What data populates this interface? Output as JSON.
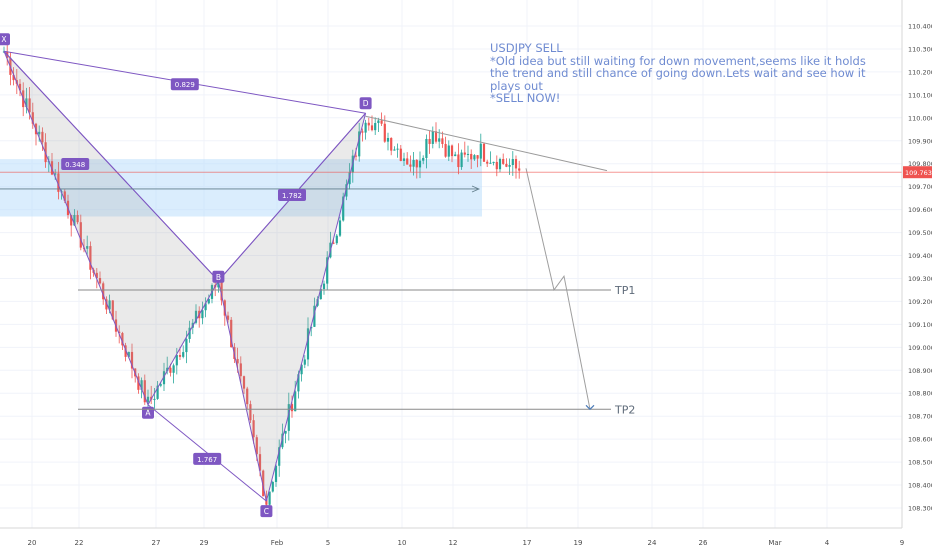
{
  "chart_data": {
    "type": "candlestick",
    "symbol": "USDJPY",
    "x_tick_labels": [
      "20",
      "22",
      "27",
      "29",
      "Feb",
      "5",
      "10",
      "12",
      "17",
      "19",
      "24",
      "26",
      "Mar",
      "4",
      "9"
    ],
    "y_tick_labels": [
      "110.400",
      "110.300",
      "110.200",
      "110.100",
      "110.000",
      "109.900",
      "109.800",
      "109.700",
      "109.600",
      "109.500",
      "109.400",
      "109.300",
      "109.200",
      "109.100",
      "109.000",
      "108.900",
      "108.800",
      "108.700",
      "108.600",
      "108.500",
      "108.400",
      "108.300"
    ],
    "ylim": [
      108.24,
      110.44
    ],
    "last_price": "109.763",
    "pattern_points": [
      {
        "label": "X",
        "bar": 0,
        "price": 110.29
      },
      {
        "label": "A",
        "bar": 45,
        "price": 108.75
      },
      {
        "label": "B",
        "bar": 67,
        "price": 109.29
      },
      {
        "label": "C",
        "bar": 82,
        "price": 108.33
      },
      {
        "label": "D",
        "bar": 113,
        "price": 110.02
      }
    ],
    "ratios": [
      "0.829",
      "0.348",
      "1.782",
      "1.767"
    ],
    "levels": [
      {
        "label": "TP1",
        "price": 109.25
      },
      {
        "label": "TP2",
        "price": 108.73
      }
    ],
    "zone": {
      "top": 109.82,
      "bottom": 109.57
    },
    "target_path_prices": [
      109.78,
      109.25,
      109.31,
      108.73
    ],
    "annotation": "USDJPY SELL\n*Old idea but still waiting for down movement,seems like it holds\nthe trend and still chance of going down.Lets wait and see how it plays out\n*SELL NOW!",
    "colors": {
      "up": "#26a69a",
      "down": "#ef5350",
      "pattern": "#7e57c2",
      "note": "#6f8bd1",
      "price_line": "#ef5350",
      "zone": "#bbdefb"
    }
  }
}
